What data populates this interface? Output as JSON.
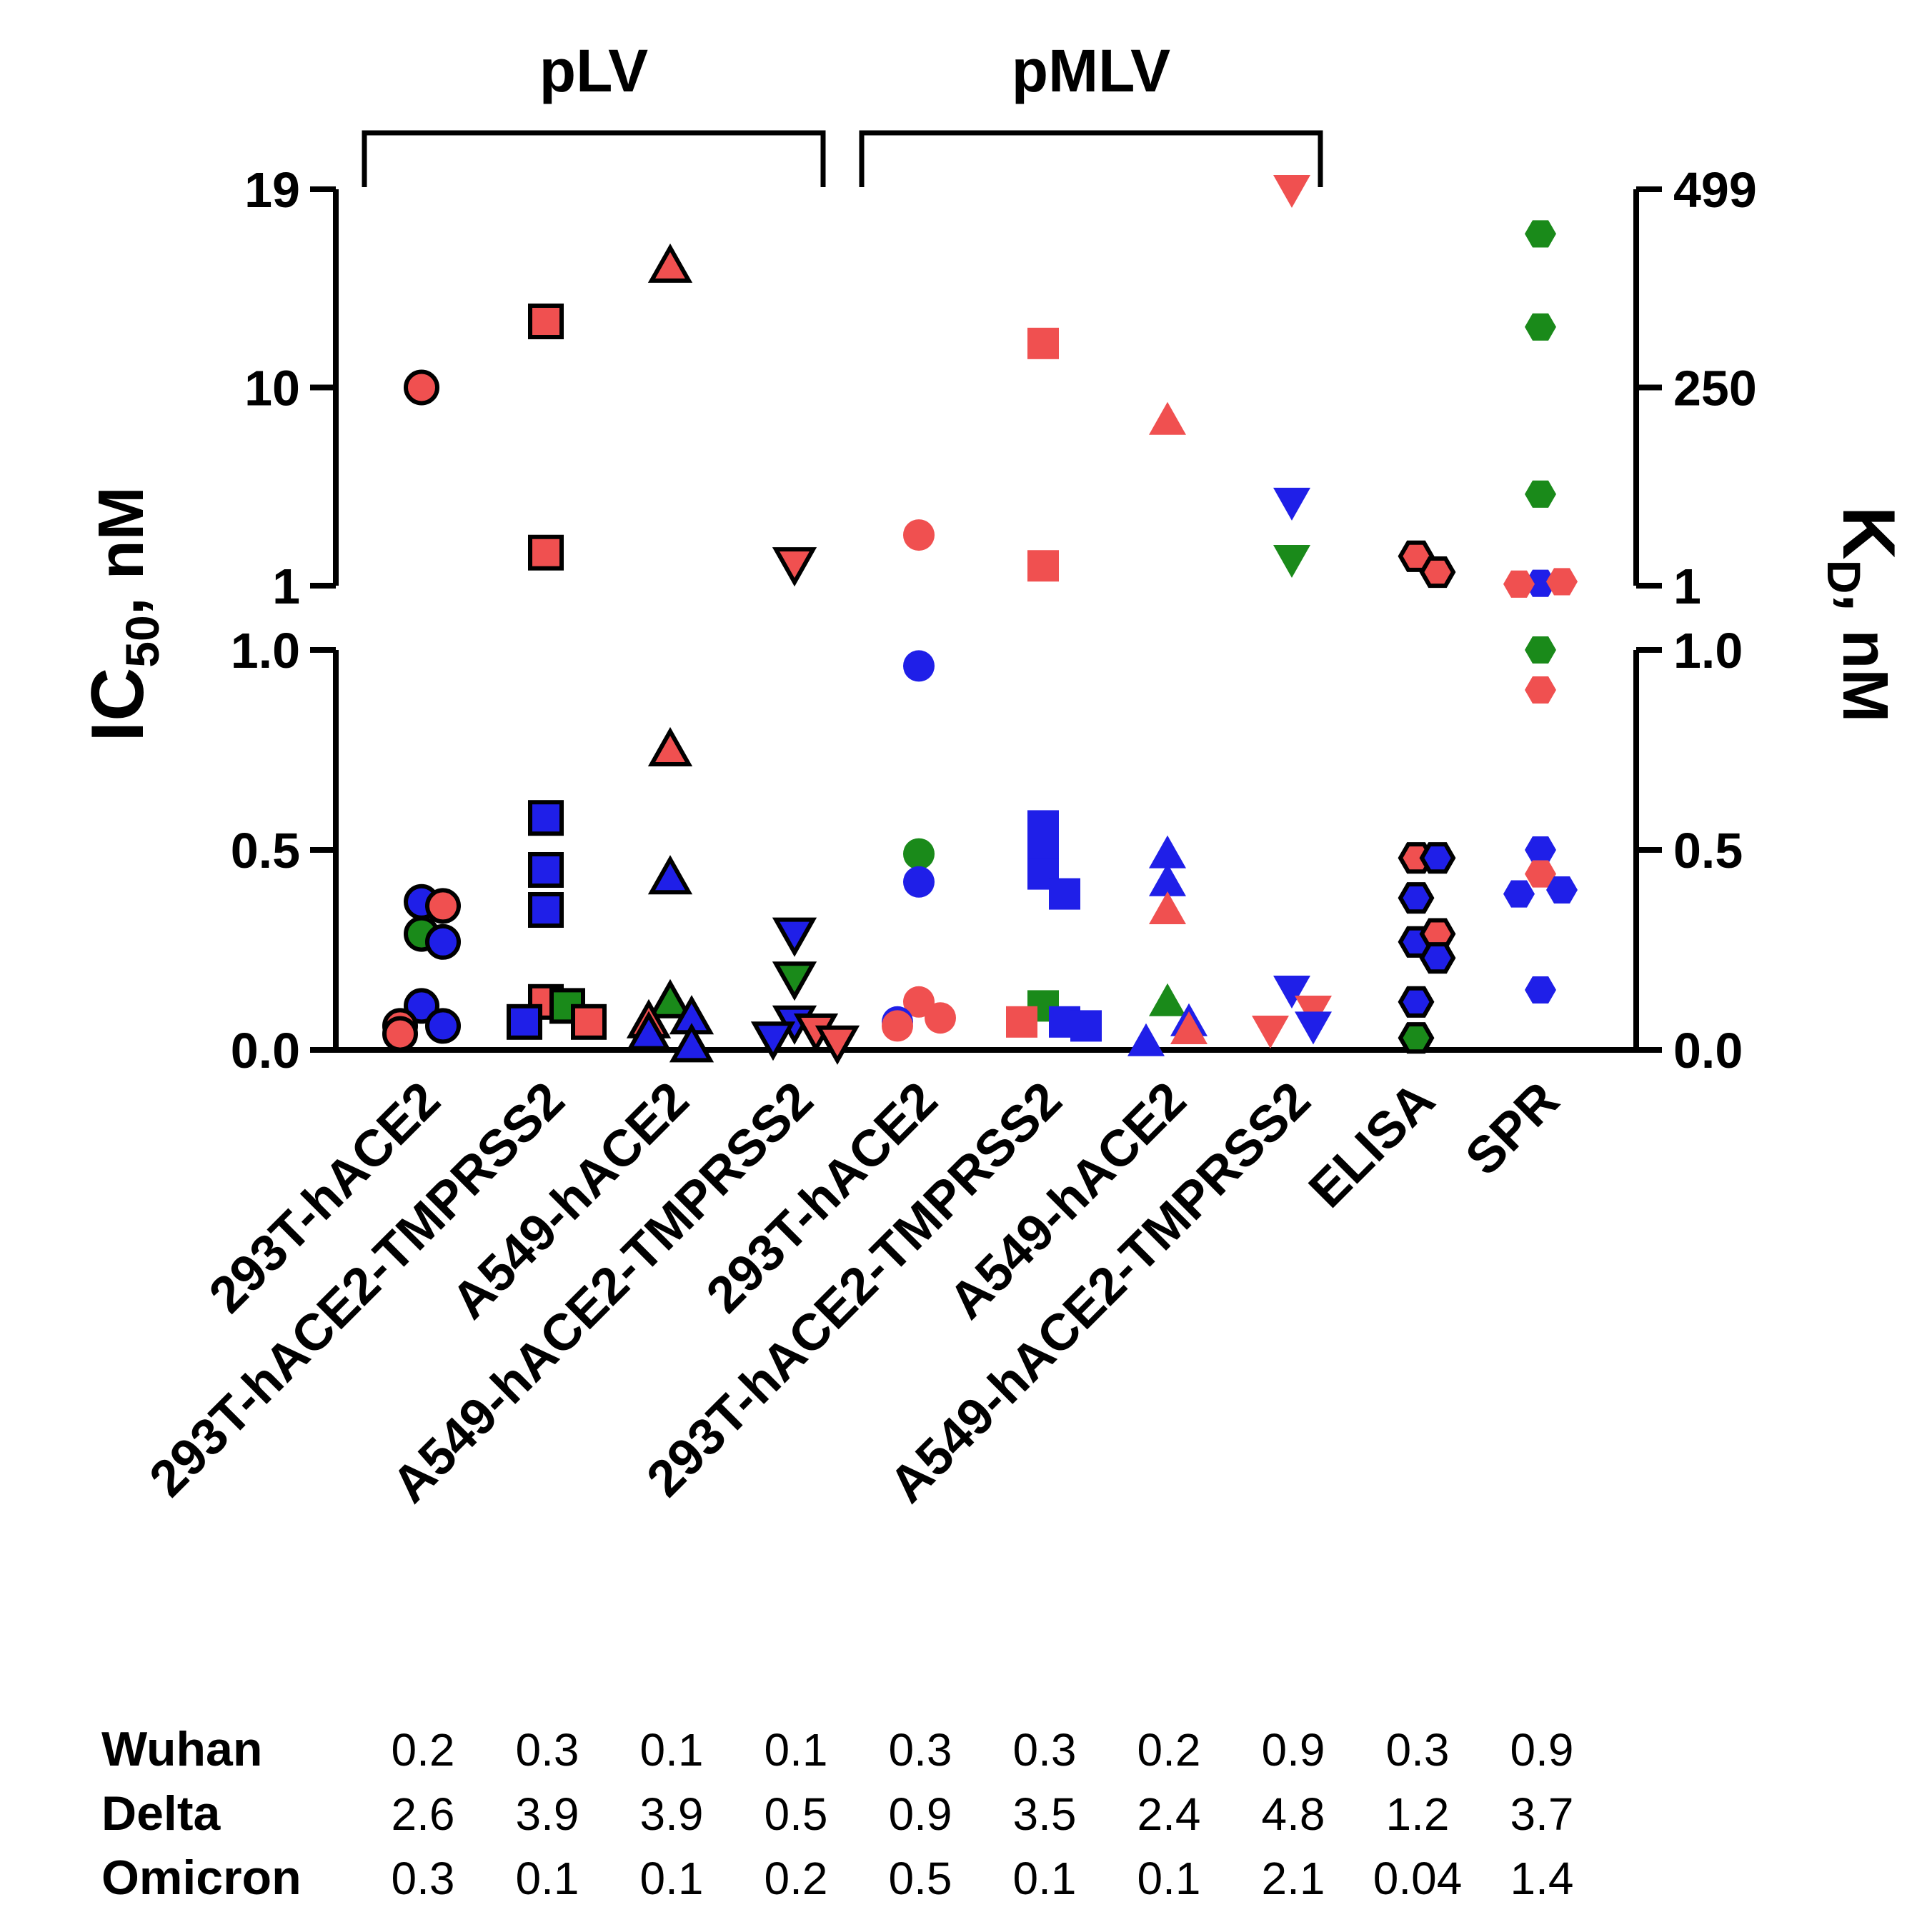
{
  "chart_data": {
    "type": "scatter",
    "groups": [
      {
        "label": "pLV",
        "from": 0,
        "to": 3
      },
      {
        "label": "pMLV",
        "from": 4,
        "to": 7
      }
    ],
    "categories": [
      "293T-hACE2",
      "293T-hACE2-TMPRSS2",
      "A549-hACE2",
      "A549-hACE2-TMPRSS2",
      "293T-hACE2",
      "293T-hACE2-TMPRSS2",
      "A549-hACE2",
      "A549-hACE2-TMPRSS2",
      "ELISA",
      "SPR"
    ],
    "left_axis": {
      "title_main": "IC",
      "title_sub": "50",
      "title_rest": ", nM",
      "lower_ticks": [
        "0.0",
        "0.5",
        "1.0"
      ],
      "lower_range": [
        0,
        1
      ],
      "upper_ticks": [
        "1",
        "10",
        "19"
      ],
      "upper_range": [
        1,
        19
      ]
    },
    "right_axis": {
      "title_main": "K",
      "title_sub": "D",
      "title_rest": ", nM",
      "lower_ticks": [
        "0.0",
        "0.5",
        "1.0"
      ],
      "lower_range": [
        0,
        1
      ],
      "upper_ticks": [
        "1",
        "250",
        "499"
      ],
      "upper_range": [
        1,
        499
      ]
    },
    "variant_colors": {
      "Wuhan": "#1f1fe8",
      "Delta": "#f05050",
      "Omicron": "#1a8a1a"
    },
    "series": [
      {
        "category": 0,
        "marker": "circle",
        "outlined": true,
        "axis": "left",
        "points": [
          {
            "v": "Delta",
            "y": 10.0
          },
          {
            "v": "Wuhan",
            "y": 0.37
          },
          {
            "v": "Delta",
            "y": 0.36
          },
          {
            "v": "Omicron",
            "y": 0.29
          },
          {
            "v": "Wuhan",
            "y": 0.27
          },
          {
            "v": "Wuhan",
            "y": 0.11
          },
          {
            "v": "Wuhan",
            "y": 0.06
          },
          {
            "v": "Delta",
            "y": 0.06
          },
          {
            "v": "Delta",
            "y": 0.04
          }
        ]
      },
      {
        "category": 1,
        "marker": "square",
        "outlined": true,
        "axis": "left",
        "points": [
          {
            "v": "Delta",
            "y": 13.0
          },
          {
            "v": "Delta",
            "y": 2.5
          },
          {
            "v": "Wuhan",
            "y": 0.58
          },
          {
            "v": "Wuhan",
            "y": 0.45
          },
          {
            "v": "Wuhan",
            "y": 0.35
          },
          {
            "v": "Delta",
            "y": 0.12
          },
          {
            "v": "Omicron",
            "y": 0.11
          },
          {
            "v": "Wuhan",
            "y": 0.07
          },
          {
            "v": "Delta",
            "y": 0.07
          }
        ]
      },
      {
        "category": 2,
        "marker": "triangle-up",
        "outlined": true,
        "axis": "left",
        "points": [
          {
            "v": "Delta",
            "y": 15.5
          },
          {
            "v": "Delta",
            "y": 0.75
          },
          {
            "v": "Wuhan",
            "y": 0.43
          },
          {
            "v": "Omicron",
            "y": 0.12
          },
          {
            "v": "Wuhan",
            "y": 0.08
          },
          {
            "v": "Delta",
            "y": 0.07
          },
          {
            "v": "Wuhan",
            "y": 0.04
          },
          {
            "v": "Wuhan",
            "y": 0.01
          }
        ]
      },
      {
        "category": 3,
        "marker": "triangle-down",
        "outlined": true,
        "axis": "left",
        "points": [
          {
            "v": "Delta",
            "y": 2.0
          },
          {
            "v": "Wuhan",
            "y": 0.29
          },
          {
            "v": "Omicron",
            "y": 0.18
          },
          {
            "v": "Wuhan",
            "y": 0.07
          },
          {
            "v": "Delta",
            "y": 0.05
          },
          {
            "v": "Wuhan",
            "y": 0.03
          },
          {
            "v": "Delta",
            "y": 0.02
          }
        ]
      },
      {
        "category": 4,
        "marker": "circle",
        "outlined": false,
        "axis": "left",
        "points": [
          {
            "v": "Delta",
            "y": 3.3
          },
          {
            "v": "Wuhan",
            "y": 0.96
          },
          {
            "v": "Omicron",
            "y": 0.49
          },
          {
            "v": "Wuhan",
            "y": 0.42
          },
          {
            "v": "Delta",
            "y": 0.12
          },
          {
            "v": "Delta",
            "y": 0.08
          },
          {
            "v": "Wuhan",
            "y": 0.07
          },
          {
            "v": "Delta",
            "y": 0.06
          }
        ]
      },
      {
        "category": 5,
        "marker": "square",
        "outlined": false,
        "axis": "left",
        "points": [
          {
            "v": "Delta",
            "y": 12.0
          },
          {
            "v": "Delta",
            "y": 1.9
          },
          {
            "v": "Wuhan",
            "y": 0.56
          },
          {
            "v": "Wuhan",
            "y": 0.5
          },
          {
            "v": "Wuhan",
            "y": 0.44
          },
          {
            "v": "Wuhan",
            "y": 0.39
          },
          {
            "v": "Omicron",
            "y": 0.11
          },
          {
            "v": "Wuhan",
            "y": 0.07
          },
          {
            "v": "Delta",
            "y": 0.07
          },
          {
            "v": "Wuhan",
            "y": 0.06
          }
        ]
      },
      {
        "category": 6,
        "marker": "triangle-up",
        "outlined": false,
        "axis": "left",
        "points": [
          {
            "v": "Delta",
            "y": 8.5
          },
          {
            "v": "Wuhan",
            "y": 0.49
          },
          {
            "v": "Wuhan",
            "y": 0.42
          },
          {
            "v": "Delta",
            "y": 0.35
          },
          {
            "v": "Omicron",
            "y": 0.12
          },
          {
            "v": "Wuhan",
            "y": 0.07
          },
          {
            "v": "Delta",
            "y": 0.05
          },
          {
            "v": "Wuhan",
            "y": 0.02
          }
        ]
      },
      {
        "category": 7,
        "marker": "triangle-down",
        "outlined": false,
        "axis": "left",
        "points": [
          {
            "v": "Delta",
            "y": 19.0
          },
          {
            "v": "Wuhan",
            "y": 4.8
          },
          {
            "v": "Omicron",
            "y": 2.2
          },
          {
            "v": "Wuhan",
            "y": 0.15
          },
          {
            "v": "Delta",
            "y": 0.1
          },
          {
            "v": "Wuhan",
            "y": 0.06
          },
          {
            "v": "Delta",
            "y": 0.05
          }
        ]
      },
      {
        "category": 8,
        "marker": "hexagon",
        "outlined": true,
        "axis": "right",
        "points": [
          {
            "v": "Delta",
            "y": 38
          },
          {
            "v": "Delta",
            "y": 18
          },
          {
            "v": "Delta",
            "y": 0.48
          },
          {
            "v": "Wuhan",
            "y": 0.48
          },
          {
            "v": "Wuhan",
            "y": 0.38
          },
          {
            "v": "Wuhan",
            "y": 0.27
          },
          {
            "v": "Delta",
            "y": 0.29
          },
          {
            "v": "Wuhan",
            "y": 0.23
          },
          {
            "v": "Wuhan",
            "y": 0.12
          },
          {
            "v": "Omicron",
            "y": 0.03
          }
        ]
      },
      {
        "category": 9,
        "marker": "hexagon",
        "outlined": false,
        "axis": "right",
        "points": [
          {
            "v": "Omicron",
            "y": 443
          },
          {
            "v": "Omicron",
            "y": 326
          },
          {
            "v": "Omicron",
            "y": 116
          },
          {
            "v": "Wuhan",
            "y": 4
          },
          {
            "v": "Delta",
            "y": 6
          },
          {
            "v": "Delta",
            "y": 3
          },
          {
            "v": "Omicron",
            "y": 1
          },
          {
            "v": "Delta",
            "y": 0.9
          },
          {
            "v": "Wuhan",
            "y": 0.5
          },
          {
            "v": "Delta",
            "y": 0.44
          },
          {
            "v": "Wuhan",
            "y": 0.4
          },
          {
            "v": "Wuhan",
            "y": 0.39
          },
          {
            "v": "Wuhan",
            "y": 0.15
          }
        ]
      }
    ],
    "table": {
      "rows": [
        {
          "label": "Wuhan",
          "values": [
            "0.2",
            "0.3",
            "0.1",
            "0.1",
            "0.3",
            "0.3",
            "0.2",
            "0.9",
            "0.3",
            "0.9"
          ]
        },
        {
          "label": "Delta",
          "values": [
            "2.6",
            "3.9",
            "3.9",
            "0.5",
            "0.9",
            "3.5",
            "2.4",
            "4.8",
            "1.2",
            "3.7"
          ]
        },
        {
          "label": "Omicron",
          "values": [
            "0.3",
            "0.1",
            "0.1",
            "0.2",
            "0.5",
            "0.1",
            "0.1",
            "2.1",
            "0.04",
            "1.4"
          ]
        }
      ]
    }
  }
}
